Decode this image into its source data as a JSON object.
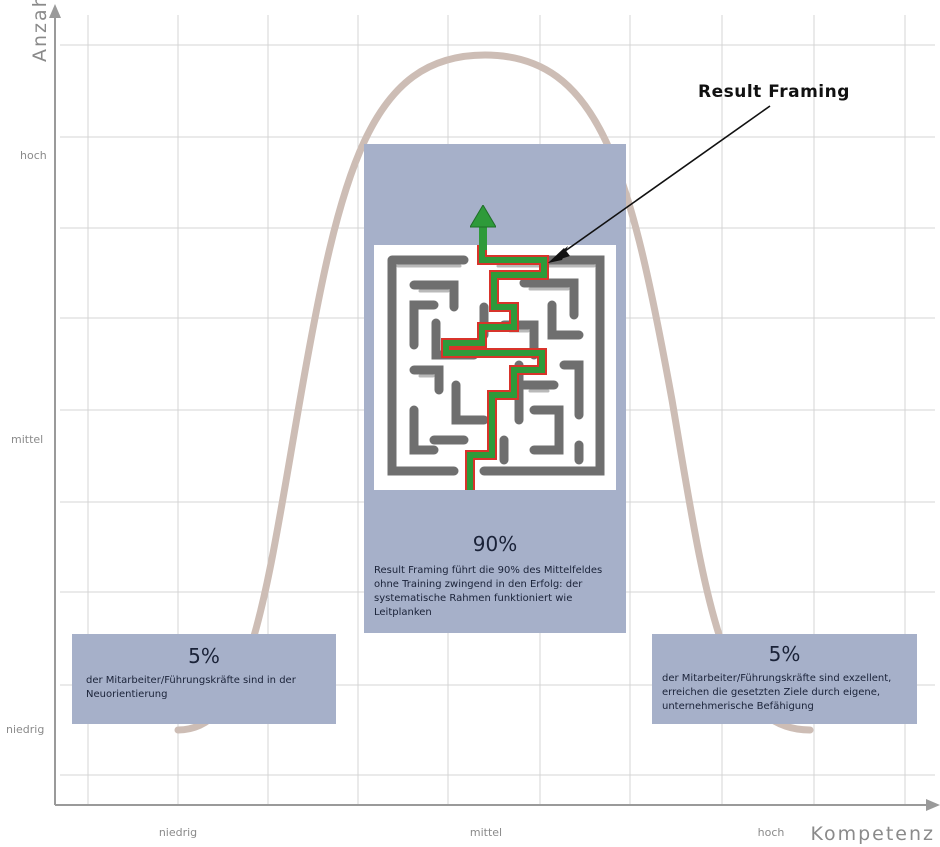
{
  "axes": {
    "y_title": "Anzahl",
    "x_title": "Kompetenz",
    "y_ticks": [
      "hoch",
      "mittel",
      "niedrig"
    ],
    "x_ticks": [
      "niedrig",
      "mittel",
      "hoch"
    ]
  },
  "callout": {
    "label": "Result Framing"
  },
  "boxes": {
    "left": {
      "percent": "5%",
      "text": "der Mitarbeiter/Führungskräfte sind in der Neuorientierung"
    },
    "center": {
      "percent": "90%",
      "text": "Result Framing führt die 90% des Mittelfeldes ohne Training zwingend in den Erfolg: der systematische Rahmen funktioniert wie Leitplanken"
    },
    "right": {
      "percent": "5%",
      "text": "der Mitarbeiter/Führungskräfte sind exzellent, erreichen die gesetzten Ziele durch eigene, unternehmerische Befähigung"
    }
  },
  "colors": {
    "curve": "#cdbdb5",
    "box": "#a6b0c9",
    "grid": "#d4d4d4",
    "path_green": "#2e9a3a",
    "path_red": "#d8342b"
  },
  "icons": {
    "maze": "maze-icon",
    "arrow": "up-arrow-icon"
  }
}
